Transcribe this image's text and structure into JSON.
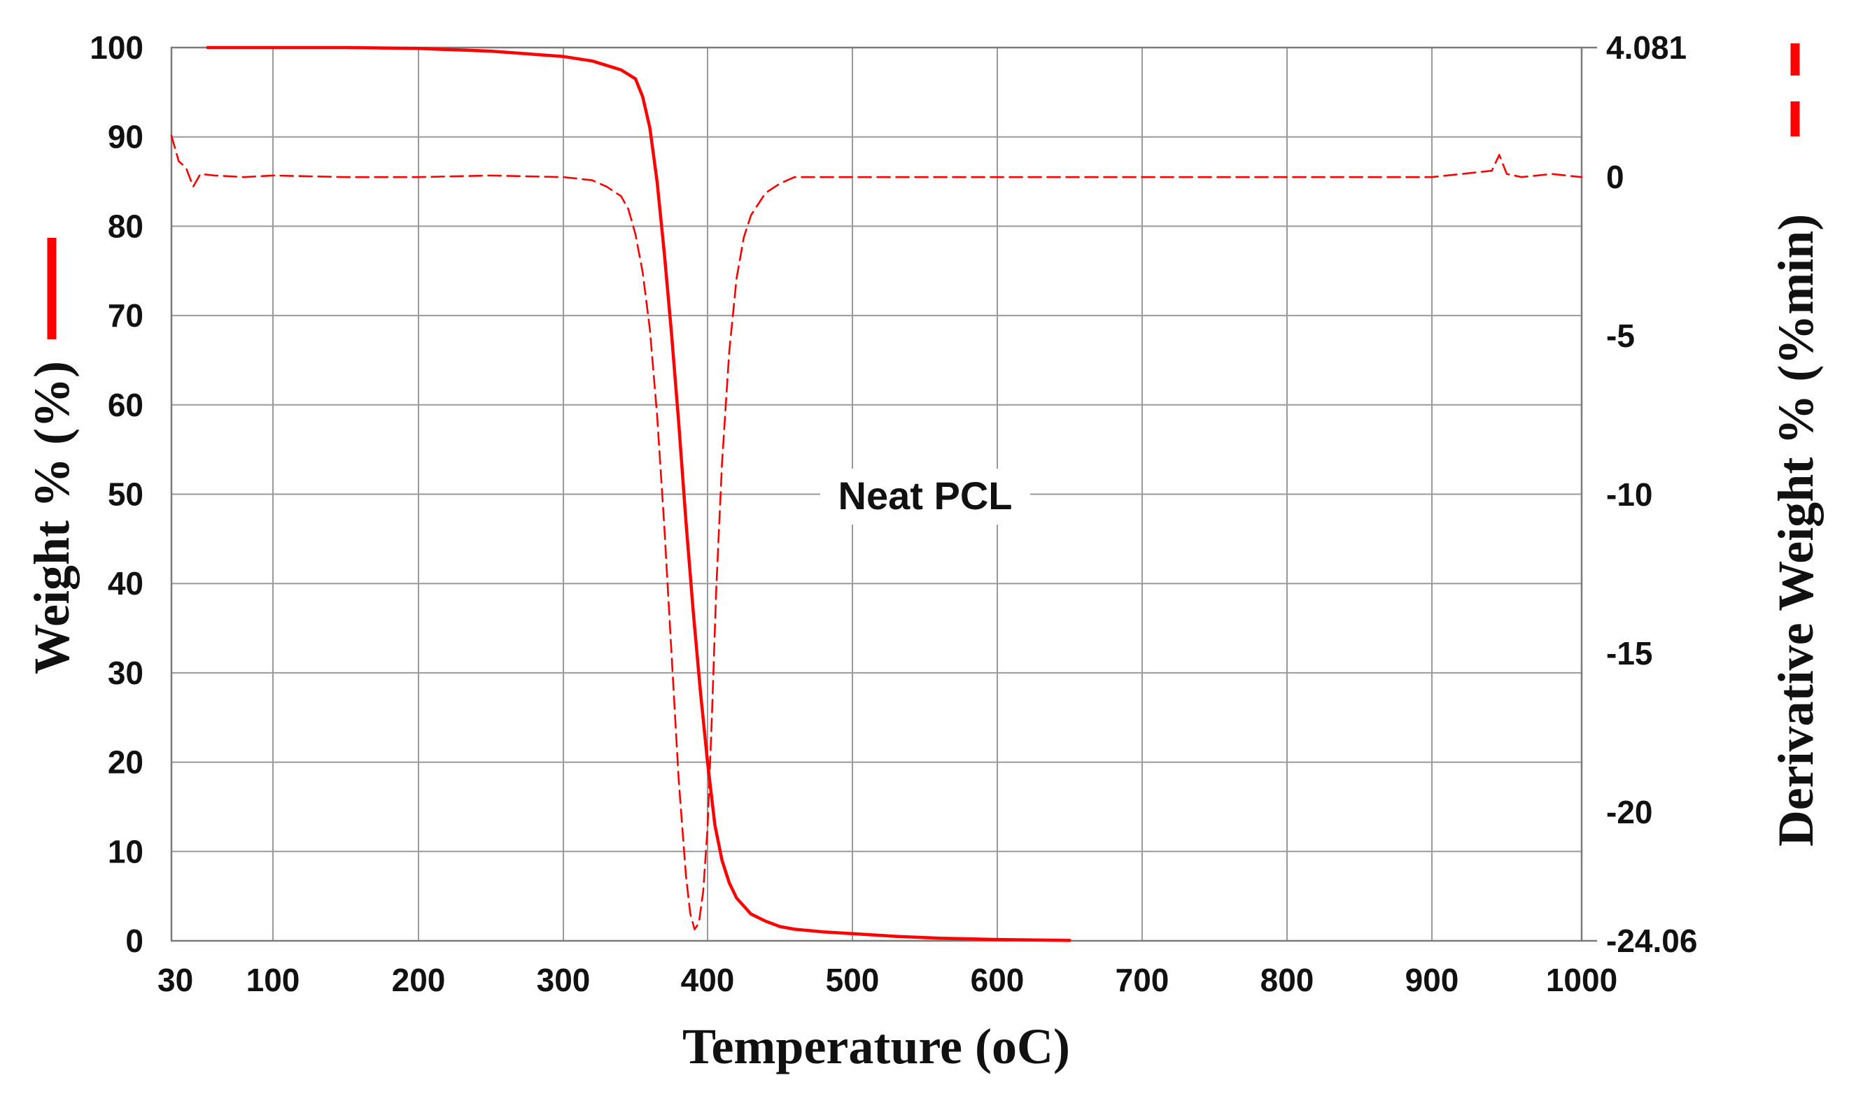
{
  "chart_data": {
    "type": "line",
    "title": "",
    "xlabel": "Temperature (oC)",
    "ylabel_left": "Weight % (%)",
    "ylabel_right": "Derivative Weight % (%min)",
    "annotation": "Neat PCL",
    "x_ticks": [
      "30",
      "100",
      "200",
      "300",
      "400",
      "500",
      "600",
      "700",
      "800",
      "900",
      "1000"
    ],
    "x_tick_values": [
      30,
      100,
      200,
      300,
      400,
      500,
      600,
      700,
      800,
      900,
      1000
    ],
    "y_left_ticks": [
      "0",
      "10",
      "20",
      "30",
      "40",
      "50",
      "60",
      "70",
      "80",
      "90",
      "100"
    ],
    "y_left_tick_values": [
      0,
      10,
      20,
      30,
      40,
      50,
      60,
      70,
      80,
      90,
      100
    ],
    "y_right_ticks": [
      "4.081",
      "0",
      "-5",
      "-10",
      "-15",
      "-20",
      "-24.06"
    ],
    "y_right_tick_values": [
      4.081,
      0,
      -5,
      -10,
      -15,
      -20,
      -24.06
    ],
    "xlim": [
      30,
      1000
    ],
    "ylim_left": [
      0,
      100
    ],
    "ylim_right": [
      -24.06,
      4.081
    ],
    "grid": true,
    "line_color": "#ff0000",
    "series": [
      {
        "name": "Weight %",
        "axis": "left",
        "style": "solid",
        "x": [
          55,
          100,
          150,
          200,
          250,
          300,
          320,
          340,
          350,
          355,
          360,
          365,
          370,
          375,
          380,
          385,
          390,
          395,
          400,
          405,
          410,
          415,
          420,
          430,
          440,
          450,
          460,
          480,
          500,
          530,
          560,
          600,
          650
        ],
        "y": [
          100,
          100,
          100,
          99.9,
          99.6,
          99,
          98.5,
          97.5,
          96.5,
          94.5,
          91,
          85,
          77,
          68,
          58,
          47,
          37,
          28,
          20,
          13,
          9,
          6.5,
          4.8,
          3,
          2.2,
          1.6,
          1.3,
          1.0,
          0.8,
          0.5,
          0.3,
          0.15,
          0.05
        ]
      },
      {
        "name": "Derivative Weight %",
        "axis": "right",
        "style": "dashed",
        "x": [
          30,
          35,
          40,
          45,
          50,
          60,
          80,
          100,
          150,
          200,
          250,
          300,
          320,
          330,
          340,
          345,
          350,
          355,
          360,
          365,
          370,
          375,
          380,
          385,
          388,
          391,
          394,
          397,
          400,
          403,
          406,
          410,
          415,
          420,
          425,
          430,
          440,
          450,
          460,
          470,
          500,
          600,
          700,
          800,
          900,
          940,
          945,
          950,
          960,
          980,
          1000
        ],
        "y": [
          1.3,
          0.5,
          0.3,
          -0.3,
          0.1,
          0.05,
          0,
          0.05,
          0,
          0,
          0.05,
          0,
          -0.1,
          -0.3,
          -0.6,
          -1.0,
          -1.8,
          -3.0,
          -4.8,
          -7.5,
          -11,
          -15,
          -19,
          -22,
          -23.2,
          -23.7,
          -23.5,
          -22.5,
          -20.5,
          -17,
          -13,
          -9,
          -5.5,
          -3.2,
          -1.9,
          -1.2,
          -0.5,
          -0.2,
          0,
          0,
          0,
          0,
          0,
          0,
          0,
          0.2,
          0.7,
          0.1,
          0,
          0.1,
          0
        ]
      }
    ],
    "legend": [
      {
        "label": "Weight %",
        "style": "solid"
      },
      {
        "label": "Derivative Weight %",
        "style": "dashed"
      }
    ]
  }
}
